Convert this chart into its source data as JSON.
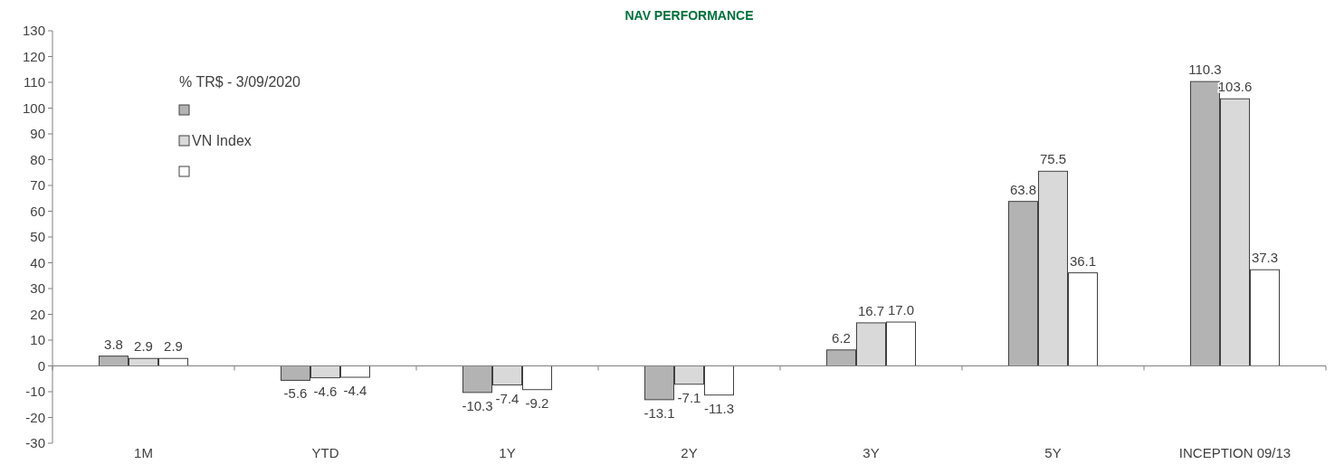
{
  "chart_data": {
    "type": "bar",
    "title": "NAV PERFORMANCE",
    "legend_title": "% TR$ - 3/09/2020",
    "categories": [
      "1M",
      "YTD",
      "1Y",
      "2Y",
      "3Y",
      "5Y",
      "INCEPTION 09/13"
    ],
    "series": [
      {
        "color": "#b3b3b3",
        "values": [
          3.8,
          -5.6,
          -10.3,
          -13.1,
          6.2,
          63.8,
          110.3
        ],
        "value_labels": [
          "3.8",
          "-5.6",
          "-10.3",
          "-13.1",
          "6.2",
          "63.8",
          "110.3"
        ]
      },
      {
        "name": "VN Index",
        "color": "#d9d9d9",
        "values": [
          2.9,
          -4.6,
          -7.4,
          -7.1,
          16.7,
          75.5,
          103.6
        ],
        "value_labels": [
          "2.9",
          "-4.6",
          "-7.4",
          "-7.1",
          "16.7",
          "75.5",
          "103.6"
        ]
      },
      {
        "color": "#ffffff",
        "values": [
          2.9,
          -4.4,
          -9.2,
          -11.3,
          17.0,
          36.1,
          37.3
        ],
        "value_labels": [
          "2.9",
          "-4.4",
          "-9.2",
          "-11.3",
          "17.0",
          "36.1",
          "37.3"
        ]
      }
    ],
    "ylim": [
      -30,
      130
    ],
    "yticks": [
      -30,
      -20,
      -10,
      0,
      10,
      20,
      30,
      40,
      50,
      60,
      70,
      80,
      90,
      100,
      110,
      120,
      130
    ],
    "legend": "top left"
  }
}
